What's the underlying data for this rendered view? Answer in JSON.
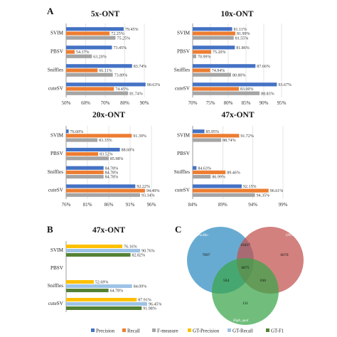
{
  "panel_letters": [
    "A",
    "B",
    "C"
  ],
  "colors": {
    "precision": "#4472c4",
    "recall": "#ed7d31",
    "fmeasure": "#a5a5a5",
    "gt_precision": "#ffc000",
    "gt_recall": "#9dc3e6",
    "gt_f1": "#548235",
    "grid": "#d9d9d9",
    "venn_pacbio": "#2e8bc0",
    "venn_ont": "#c0504d",
    "venn_high_qual": "#3aa54a"
  },
  "legend": [
    {
      "label": "Precision",
      "color_key": "precision"
    },
    {
      "label": "Recall",
      "color_key": "recall"
    },
    {
      "label": "F-measure",
      "color_key": "fmeasure"
    },
    {
      "label": "GT-Precision",
      "color_key": "gt_precision"
    },
    {
      "label": "GT-Recall",
      "color_key": "gt_recall"
    },
    {
      "label": "GT-F1",
      "color_key": "gt_f1"
    }
  ],
  "venn": {
    "set_labels": [
      "PacBio",
      "ONT",
      "High_qual"
    ],
    "region_values": [
      "7897",
      "10437",
      "6670",
      "6875",
      "504",
      "630",
      "131"
    ]
  },
  "chart_data": [
    {
      "type": "bar",
      "orientation": "horizontal",
      "title": "5x-ONT",
      "categories": [
        "SVIM",
        "PBSV",
        "Sniffles",
        "cuteSV"
      ],
      "xlim": [
        50,
        90
      ],
      "xticks": [
        50,
        60,
        70,
        80,
        90
      ],
      "tick_suffix": "%",
      "series": [
        {
          "key": "precision",
          "values": [
            79.45,
            73.45,
            83.74,
            90.63
          ]
        },
        {
          "key": "recall",
          "values": [
            72.25,
            54.37,
            66.11,
            74.45
          ]
        },
        {
          "key": "fmeasure",
          "values": [
            75.25,
            63.2,
            73.89,
            81.74
          ]
        }
      ],
      "value_labels": [
        [
          "79.45%",
          "72.25%",
          "75.25%"
        ],
        [
          "73.45%",
          "54.37%",
          "63.20%"
        ],
        [
          "83.74%",
          "66.11%",
          "73.89%"
        ],
        [
          "90.63%",
          "74.45%",
          "81.74%"
        ]
      ]
    },
    {
      "type": "bar",
      "orientation": "horizontal",
      "title": "10x-ONT",
      "categories": [
        "SVIM",
        "PBSV",
        "Sniffles",
        "cuteSV"
      ],
      "xlim": [
        70,
        95
      ],
      "xticks": [
        70,
        75,
        80,
        85,
        90,
        95
      ],
      "tick_suffix": "%",
      "series": [
        {
          "key": "precision",
          "values": [
            81.11,
            81.86,
            87.66,
            93.67
          ]
        },
        {
          "key": "recall",
          "values": [
            81.99,
            75.2,
            74.94,
            83.0
          ]
        },
        {
          "key": "fmeasure",
          "values": [
            81.55,
            70.99,
            80.8,
            88.83
          ]
        }
      ],
      "value_labels": [
        [
          "81.11%",
          "81.99%",
          "81.55%"
        ],
        [
          "81.86%",
          "75.20%",
          "70.99%"
        ],
        [
          "87.66%",
          "74.94%",
          "80.80%"
        ],
        [
          "93.67%",
          "83.00%",
          "88.83%"
        ]
      ]
    },
    {
      "type": "bar",
      "orientation": "horizontal",
      "title": "20x-ONT",
      "categories": [
        "SVIM",
        "PBSV",
        "Sniffles",
        "cuteSV"
      ],
      "xlim": [
        76,
        96
      ],
      "xticks": [
        76,
        81,
        86,
        91,
        96
      ],
      "tick_suffix": "%",
      "series": [
        {
          "key": "precision",
          "values": [
            76.6,
            88.6,
            84.78,
            92.22
          ]
        },
        {
          "key": "recall",
          "values": [
            91.39,
            83.52,
            84.78,
            94.49
          ]
        },
        {
          "key": "fmeasure",
          "values": [
            83.35,
            85.98,
            84.78,
            93.34
          ]
        }
      ],
      "value_labels": [
        [
          "76.60%",
          "91.39%",
          "83.35%"
        ],
        [
          "88.60%",
          "83.52%",
          "85.98%"
        ],
        [
          "84.78%",
          "84.78%",
          "84.78%"
        ],
        [
          "92.22%",
          "94.49%",
          "93.34%"
        ]
      ]
    },
    {
      "type": "bar",
      "orientation": "horizontal",
      "title": "47x-ONT",
      "categories": [
        "SVIM",
        "PBSV",
        "Sniffles",
        "cuteSV"
      ],
      "xlim": [
        84,
        99
      ],
      "xticks": [
        84,
        89,
        94,
        99
      ],
      "tick_suffix": "%",
      "series": [
        {
          "key": "precision",
          "values": [
            85.95,
            null,
            84.63,
            92.15
          ]
        },
        {
          "key": "recall",
          "values": [
            91.72,
            null,
            89.46,
            96.61
          ]
        },
        {
          "key": "fmeasure",
          "values": [
            88.74,
            null,
            86.99,
            94.35
          ]
        }
      ],
      "value_labels": [
        [
          "85.95%",
          "91.72%",
          "88.74%"
        ],
        [
          "",
          "",
          ""
        ],
        [
          "84.63%",
          "89.46%",
          "86.99%"
        ],
        [
          "92.15%",
          "96.61%",
          "94.35%"
        ]
      ]
    },
    {
      "type": "bar",
      "orientation": "horizontal",
      "title": "47x-ONT",
      "categories": [
        "SVIM",
        "PBSV",
        "Sniffles",
        "cuteSV"
      ],
      "xlim": [
        30,
        100
      ],
      "xticks": [],
      "tick_suffix": "",
      "series": [
        {
          "key": "gt_precision",
          "values": [
            76.16,
            null,
            52.69,
            87.91
          ]
        },
        {
          "key": "gt_recall",
          "values": [
            90.76,
            null,
            84.09,
            96.45
          ]
        },
        {
          "key": "gt_f1",
          "values": [
            82.82,
            null,
            64.78,
            91.98
          ]
        }
      ],
      "value_labels": [
        [
          "76.16%",
          "90.76%",
          "82.82%"
        ],
        [
          "",
          "",
          ""
        ],
        [
          "52.69%",
          "84.09%",
          "64.78%"
        ],
        [
          "87.91%",
          "96.45%",
          "91.98%"
        ]
      ]
    }
  ]
}
